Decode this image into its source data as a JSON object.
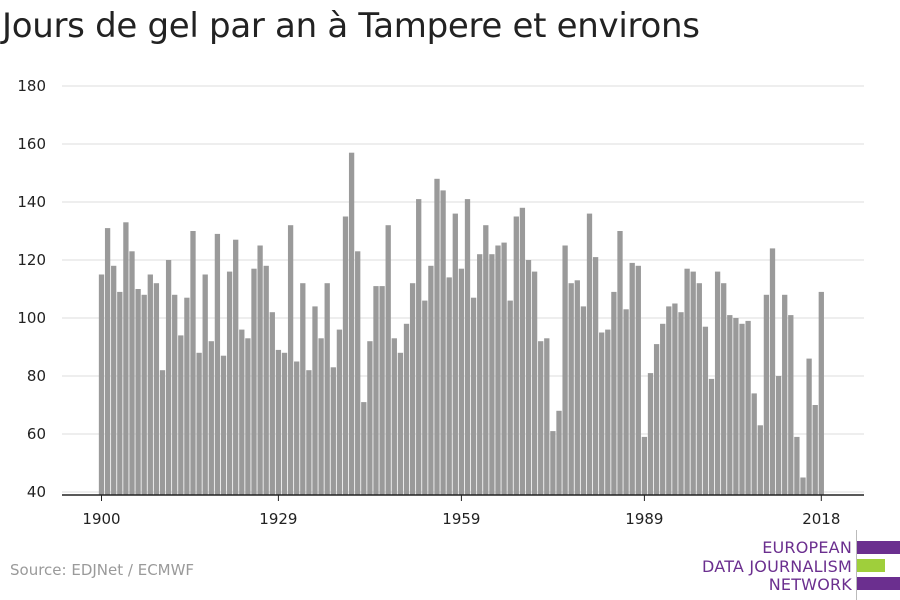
{
  "title": "Jours de gel par an à Tampere et environs",
  "source": "Source: EDJNet / ECMWF",
  "logo": {
    "lines": [
      "EUROPEAN",
      "DATA JOURNALISM",
      "NETWORK"
    ],
    "colors": {
      "purple": "#6b2f8f",
      "green": "#9fcf3b"
    }
  },
  "colors": {
    "bar": "#9a9a9a",
    "grid": "#dddddd",
    "axis": "#222222"
  },
  "chart_data": {
    "type": "bar",
    "title": "Jours de gel par an à Tampere et environs",
    "xlabel": "",
    "ylabel": "",
    "ylim": [
      40,
      180
    ],
    "yticks": [
      40,
      60,
      80,
      100,
      120,
      140,
      160,
      180
    ],
    "xticks": [
      1900,
      1929,
      1959,
      1989,
      2018
    ],
    "grid": true,
    "x_start": 1900,
    "x_end": 2018,
    "values": [
      115,
      131,
      118,
      109,
      133,
      123,
      110,
      108,
      115,
      112,
      82,
      120,
      108,
      94,
      107,
      130,
      88,
      115,
      92,
      129,
      87,
      116,
      127,
      96,
      93,
      117,
      125,
      118,
      102,
      89,
      88,
      132,
      85,
      112,
      82,
      104,
      93,
      112,
      83,
      96,
      135,
      157,
      123,
      71,
      92,
      111,
      111,
      132,
      93,
      88,
      98,
      112,
      141,
      106,
      118,
      148,
      144,
      114,
      136,
      117,
      141,
      107,
      122,
      132,
      122,
      125,
      126,
      106,
      135,
      138,
      120,
      116,
      92,
      93,
      61,
      68,
      125,
      112,
      113,
      104,
      136,
      121,
      95,
      96,
      109,
      130,
      103,
      119,
      118,
      59,
      81,
      91,
      98,
      104,
      105,
      102,
      117,
      116,
      112,
      97,
      79,
      116,
      112,
      101,
      100,
      98,
      99,
      74,
      63,
      108,
      124,
      80,
      108,
      101,
      59,
      45,
      86,
      70,
      109
    ]
  }
}
